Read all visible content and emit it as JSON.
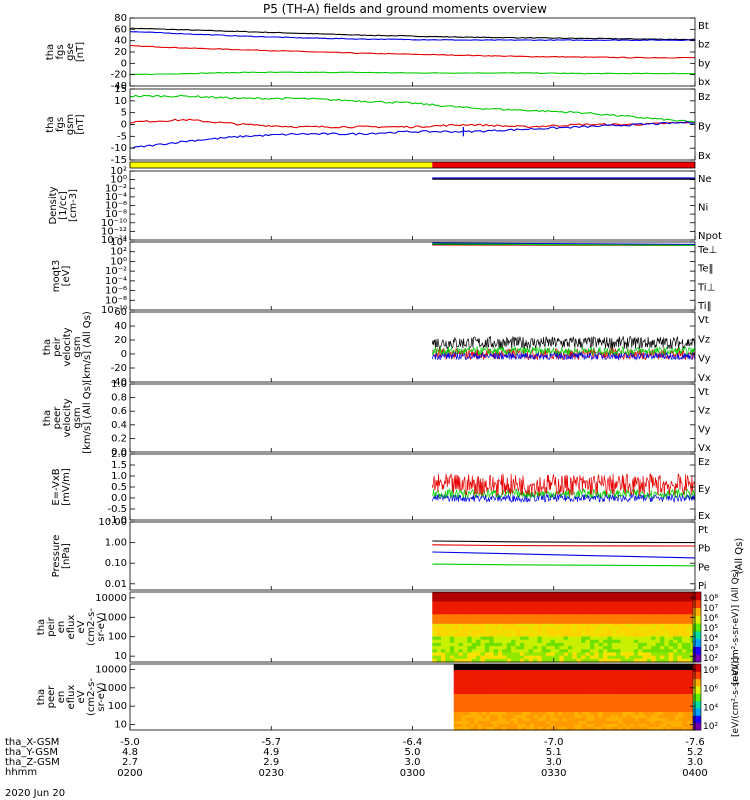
{
  "title": "P5 (TH-A) fields and ground moments overview",
  "date_label": "2020 Jun 20",
  "chart_data": [
    {
      "type": "line",
      "id": "fgs_gse",
      "ylabel": [
        "tha",
        "fgs",
        "gse",
        "[nT]"
      ],
      "ylim": [
        -40,
        80
      ],
      "yticks": [
        80,
        60,
        40,
        20,
        0,
        -20,
        -40
      ],
      "legend": [
        {
          "name": "Bt",
          "color": "#000000"
        },
        {
          "name": "bz",
          "color": "#e60000"
        },
        {
          "name": "by",
          "color": "#00cc00"
        },
        {
          "name": "bx",
          "color": "#0000e6"
        }
      ],
      "series": [
        {
          "name": "Bt",
          "color": "#000000",
          "x": [
            0.0,
            0.1,
            0.2,
            0.3,
            0.4,
            0.5,
            0.6,
            0.7,
            0.8,
            0.9,
            1.0
          ],
          "y": [
            62,
            59,
            56,
            53,
            50,
            48,
            46,
            45,
            44,
            43,
            42
          ]
        },
        {
          "name": "bz",
          "color": "#e60000",
          "x": [
            0.0,
            0.1,
            0.2,
            0.3,
            0.4,
            0.5,
            0.6,
            0.7,
            0.8,
            0.9,
            1.0
          ],
          "y": [
            31,
            27,
            24,
            21,
            18,
            16,
            14,
            12,
            11,
            10,
            10
          ]
        },
        {
          "name": "by",
          "color": "#00cc00",
          "x": [
            0.0,
            0.1,
            0.2,
            0.3,
            0.4,
            0.5,
            0.6,
            0.7,
            0.8,
            0.9,
            1.0
          ],
          "y": [
            -20,
            -18,
            -16,
            -16,
            -16,
            -17,
            -17,
            -17,
            -18,
            -18,
            -18
          ]
        },
        {
          "name": "bx",
          "color": "#0000e6",
          "x": [
            0.0,
            0.1,
            0.2,
            0.3,
            0.4,
            0.5,
            0.6,
            0.7,
            0.8,
            0.9,
            1.0
          ],
          "y": [
            56,
            52,
            48,
            45,
            43,
            42,
            41,
            41,
            41,
            41,
            41
          ]
        }
      ]
    },
    {
      "type": "line",
      "id": "fgs_gsm",
      "ylabel": [
        "tha",
        "fgs",
        "gsm",
        "[nT]"
      ],
      "ylim": [
        -15,
        15
      ],
      "yticks": [
        15,
        10,
        5,
        0,
        -5,
        -10,
        -15
      ],
      "legend": [
        {
          "name": "Bz",
          "color": "#e60000"
        },
        {
          "name": "By",
          "color": "#00cc00"
        },
        {
          "name": "Bx",
          "color": "#0000e6"
        }
      ],
      "series": [
        {
          "name": "Bz",
          "color": "#e60000",
          "x": [
            0.0,
            0.1,
            0.2,
            0.3,
            0.4,
            0.5,
            0.6,
            0.7,
            0.8,
            0.9,
            1.0
          ],
          "y": [
            1,
            2,
            0,
            -1,
            -1,
            -1,
            0,
            -1,
            0,
            0,
            1
          ]
        },
        {
          "name": "By",
          "color": "#00cc00",
          "x": [
            0.0,
            0.1,
            0.2,
            0.3,
            0.4,
            0.5,
            0.6,
            0.7,
            0.8,
            0.9,
            1.0
          ],
          "y": [
            12,
            12,
            11,
            11,
            10,
            9,
            7,
            6,
            5,
            3,
            1
          ]
        },
        {
          "name": "Bx",
          "color": "#0000e6",
          "x": [
            0.0,
            0.1,
            0.2,
            0.3,
            0.4,
            0.5,
            0.6,
            0.7,
            0.8,
            0.9,
            1.0
          ],
          "y": [
            -10,
            -7,
            -5,
            -4,
            -4,
            -3,
            -3,
            -2,
            -1,
            0,
            1
          ]
        }
      ]
    },
    {
      "type": "bar",
      "id": "status_bar",
      "segments": [
        {
          "color": "#ffff00",
          "x0": 0.0,
          "x1": 0.535
        },
        {
          "color": "#ee0000",
          "x0": 0.535,
          "x1": 1.0
        }
      ]
    },
    {
      "type": "line",
      "id": "density",
      "ylabel": [
        "Density",
        "[1/cc]",
        "[cm-3]"
      ],
      "ylim": [
        -14,
        2
      ],
      "yscale": "log",
      "yticks": [
        2,
        0,
        -2,
        -4,
        -6,
        -8,
        -10,
        -12,
        -14
      ],
      "yticklabels": [
        "10²",
        "10⁰",
        "10⁻²",
        "10⁻⁴",
        "10⁻⁶",
        "10⁻⁸",
        "10⁻¹⁰",
        "10⁻¹²",
        "10⁻¹⁴"
      ],
      "legend": [
        {
          "name": "Ne",
          "color": "#e60000"
        },
        {
          "name": "Ni",
          "color": "#000000"
        },
        {
          "name": "Npot",
          "color": "#0000e6"
        }
      ],
      "series": [
        {
          "name": "Ne",
          "color": "#e60000",
          "x": [
            0.535,
            1.0
          ],
          "y": [
            0.3,
            0.3
          ]
        },
        {
          "name": "Ni",
          "color": "#000000",
          "x": [
            0.535,
            1.0
          ],
          "y": [
            0.1,
            0.1
          ]
        },
        {
          "name": "Npot",
          "color": "#0000e6",
          "x": [
            0.535,
            1.0
          ],
          "y": [
            0.4,
            0.4
          ]
        }
      ]
    },
    {
      "type": "line",
      "id": "temp",
      "ylabel": [
        "moqt3",
        "[eV]"
      ],
      "ylim": [
        -10,
        4
      ],
      "yscale": "log",
      "yticks": [
        4,
        2,
        0,
        -2,
        -4,
        -6,
        -8,
        -10
      ],
      "yticklabels": [
        "10⁴",
        "10²",
        "10⁰",
        "10⁻²",
        "10⁻⁴",
        "10⁻⁶",
        "10⁻⁸",
        "10⁻¹⁰"
      ],
      "legend": [
        {
          "name": "Te⊥",
          "color": "#e60000"
        },
        {
          "name": "Te‖",
          "color": "#000000"
        },
        {
          "name": "Ti⊥",
          "color": "#0000e6"
        },
        {
          "name": "Ti‖",
          "color": "#00cc00"
        }
      ],
      "series": [
        {
          "name": "Te⊥",
          "color": "#e60000",
          "x": [
            0.535,
            1.0
          ],
          "y": [
            3.4,
            3.3
          ]
        },
        {
          "name": "Te‖",
          "color": "#000000",
          "x": [
            0.535,
            1.0
          ],
          "y": [
            3.5,
            3.4
          ]
        },
        {
          "name": "Ti⊥",
          "color": "#0000e6",
          "x": [
            0.535,
            1.0
          ],
          "y": [
            3.8,
            3.5
          ]
        },
        {
          "name": "Ti‖",
          "color": "#00cc00",
          "x": [
            0.535,
            1.0
          ],
          "y": [
            3.6,
            3.3
          ]
        }
      ]
    },
    {
      "type": "line",
      "id": "peir_vel",
      "ylabel": [
        "tha",
        "peir",
        "velocity",
        "gsm",
        "[km/s] (All Qs)"
      ],
      "ylim": [
        -40,
        60
      ],
      "yticks": [
        60,
        40,
        20,
        0,
        -20,
        -40
      ],
      "legend": [
        {
          "name": "Vt",
          "color": "#000000"
        },
        {
          "name": "Vz",
          "color": "#e60000"
        },
        {
          "name": "Vy",
          "color": "#00cc00"
        },
        {
          "name": "Vx",
          "color": "#0000e6"
        }
      ],
      "series": [
        {
          "name": "Vt",
          "color": "#000000",
          "start": 0.535,
          "level": 16,
          "noise": 9
        },
        {
          "name": "Vz",
          "color": "#e60000",
          "start": 0.535,
          "level": 0,
          "noise": 8
        },
        {
          "name": "Vy",
          "color": "#00cc00",
          "start": 0.535,
          "level": 4,
          "noise": 6
        },
        {
          "name": "Vx",
          "color": "#0000e6",
          "start": 0.535,
          "level": -3,
          "noise": 5
        }
      ]
    },
    {
      "type": "line",
      "id": "peer_vel",
      "ylabel": [
        "tha",
        "peer",
        "velocity",
        "gsm",
        "[km/s] (All Qs)"
      ],
      "ylim": [
        0,
        1
      ],
      "yticks": [
        1.0,
        0.8,
        0.6,
        0.4,
        0.2,
        0.0
      ],
      "legend": [
        {
          "name": "Vt",
          "color": "#000000"
        },
        {
          "name": "Vz",
          "color": "#e60000"
        },
        {
          "name": "Vy",
          "color": "#00cc00"
        },
        {
          "name": "Vx",
          "color": "#0000e6"
        }
      ],
      "series": []
    },
    {
      "type": "line",
      "id": "efield",
      "ylabel": [
        "E=-VxB",
        "[mV/m]"
      ],
      "ylim": [
        -1,
        2
      ],
      "yticks": [
        2.0,
        1.5,
        1.0,
        0.5,
        0.0,
        -0.5,
        -1.0
      ],
      "legend": [
        {
          "name": "Ez",
          "color": "#e60000"
        },
        {
          "name": "Ey",
          "color": "#00cc00"
        },
        {
          "name": "Ex",
          "color": "#0000e6"
        }
      ],
      "series": [
        {
          "name": "Ex",
          "color": "#0000e6",
          "start": 0.535,
          "level": 0.0,
          "noise": 0.18
        },
        {
          "name": "Ey",
          "color": "#00cc00",
          "start": 0.535,
          "level": 0.2,
          "noise": 0.2
        },
        {
          "name": "Ez",
          "color": "#e60000",
          "start": 0.535,
          "level": 0.6,
          "noise": 0.5
        }
      ]
    },
    {
      "type": "line",
      "id": "pressure",
      "ylabel": [
        "Pressure",
        "[nPa]"
      ],
      "ylim": [
        0.005,
        10
      ],
      "yscale": "log",
      "yticks": [
        10.0,
        1.0,
        0.1,
        0.01
      ],
      "yticklabels": [
        "10.00",
        "1.00",
        "0.10",
        "0.01"
      ],
      "legend": [
        {
          "name": "Pt",
          "color": "#000000"
        },
        {
          "name": "Pb",
          "color": "#e60000"
        },
        {
          "name": "Pe",
          "color": "#00cc00"
        },
        {
          "name": "Pi",
          "color": "#0000e6"
        }
      ],
      "legend_note": "(All Qs)",
      "series": [
        {
          "name": "Pt",
          "color": "#000000",
          "x": [
            0.535,
            0.65,
            0.8,
            1.0
          ],
          "y": [
            1.2,
            1.1,
            1.05,
            1.0
          ]
        },
        {
          "name": "Pb",
          "color": "#e60000",
          "x": [
            0.535,
            0.65,
            0.8,
            1.0
          ],
          "y": [
            0.78,
            0.72,
            0.7,
            0.68
          ]
        },
        {
          "name": "Pe",
          "color": "#00cc00",
          "x": [
            0.535,
            0.65,
            0.8,
            1.0
          ],
          "y": [
            0.09,
            0.085,
            0.08,
            0.075
          ]
        },
        {
          "name": "Pi",
          "color": "#0000e6",
          "x": [
            0.535,
            0.65,
            0.8,
            1.0
          ],
          "y": [
            0.35,
            0.3,
            0.24,
            0.18
          ]
        }
      ]
    },
    {
      "type": "heatmap",
      "id": "peir_spec",
      "ylabel": [
        "tha",
        "peir",
        "en",
        "eflux",
        "eV",
        "(cm2-s-",
        "sr-eV)"
      ],
      "ylim": [
        5,
        20000
      ],
      "yscale": "log",
      "yticks": [
        10000,
        1000,
        100,
        10
      ],
      "yticklabels": [
        "10000",
        "1000",
        "100",
        "10"
      ],
      "start": 0.535,
      "colorbar_ticks": [
        "10⁸",
        "10⁷",
        "10⁶",
        "10⁵",
        "10⁴",
        "10³",
        "10²"
      ],
      "colorbar_label": "[eV/(cm²-s-sr-eV)] (All Qs)"
    },
    {
      "type": "heatmap",
      "id": "peer_spec",
      "ylabel": [
        "tha",
        "peer",
        "en",
        "eflux",
        "eV",
        "(cm2-s-",
        "sr-eV)"
      ],
      "ylim": [
        5,
        20000
      ],
      "yscale": "log",
      "yticks": [
        10000,
        1000,
        100,
        10
      ],
      "yticklabels": [
        "10000",
        "1000",
        "100",
        "10"
      ],
      "start": 0.573,
      "colorbar_ticks": [
        "10⁸",
        "10⁶",
        "10⁴",
        "10²"
      ],
      "colorbar_label": "[eV/(cm²-s-sr-eV)]"
    }
  ],
  "x_axis": {
    "row_labels": [
      "tha_X-GSM",
      "tha_Y-GSM",
      "tha_Z-GSM",
      "hhmm"
    ],
    "ticks": [
      {
        "x": 0.0,
        "X": "-5.0",
        "Y": "4.8",
        "Z": "2.7",
        "hhmm": "0200"
      },
      {
        "x": 0.25,
        "X": "-5.7",
        "Y": "4.9",
        "Z": "2.9",
        "hhmm": "0230"
      },
      {
        "x": 0.5,
        "X": "-6.4",
        "Y": "5.0",
        "Z": "3.0",
        "hhmm": "0300"
      },
      {
        "x": 0.75,
        "X": "-7.0",
        "Y": "5.1",
        "Z": "3.0",
        "hhmm": "0330"
      },
      {
        "x": 1.0,
        "X": "-7.6",
        "Y": "5.2",
        "Z": "3.0",
        "hhmm": "0400"
      }
    ]
  }
}
